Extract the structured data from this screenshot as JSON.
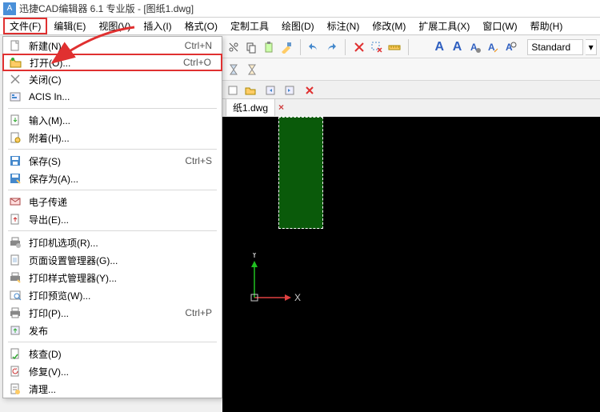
{
  "title": "迅捷CAD编辑器 6.1 专业版  - [图纸1.dwg]",
  "menubar": [
    {
      "label": "文件(F)",
      "active": true
    },
    {
      "label": "编辑(E)"
    },
    {
      "label": "视图(V)"
    },
    {
      "label": "插入(I)"
    },
    {
      "label": "格式(O)"
    },
    {
      "label": "定制工具"
    },
    {
      "label": "绘图(D)"
    },
    {
      "label": "标注(N)"
    },
    {
      "label": "修改(M)"
    },
    {
      "label": "扩展工具(X)"
    },
    {
      "label": "窗口(W)"
    },
    {
      "label": "帮助(H)"
    }
  ],
  "dropdown": [
    {
      "icon": "new",
      "label": "新建(N)...",
      "shortcut": "Ctrl+N"
    },
    {
      "icon": "open",
      "label": "打开(O)...",
      "shortcut": "Ctrl+O",
      "hl": true
    },
    {
      "icon": "close",
      "label": "关闭(C)"
    },
    {
      "icon": "acis",
      "label": "ACIS In..."
    },
    {
      "div": true
    },
    {
      "icon": "import",
      "label": "输入(M)..."
    },
    {
      "icon": "attach",
      "label": "附着(H)..."
    },
    {
      "div": true
    },
    {
      "icon": "save",
      "label": "保存(S)",
      "shortcut": "Ctrl+S"
    },
    {
      "icon": "saveas",
      "label": "保存为(A)..."
    },
    {
      "div": true
    },
    {
      "icon": "etrans",
      "label": "电子传递"
    },
    {
      "icon": "export",
      "label": "导出(E)..."
    },
    {
      "div": true
    },
    {
      "icon": "printopt",
      "label": "打印机选项(R)..."
    },
    {
      "icon": "pagesetup",
      "label": "页面设置管理器(G)..."
    },
    {
      "icon": "plotstyle",
      "label": "打印样式管理器(Y)..."
    },
    {
      "icon": "preview",
      "label": "打印预览(W)..."
    },
    {
      "icon": "print",
      "label": "打印(P)...",
      "shortcut": "Ctrl+P"
    },
    {
      "icon": "publish",
      "label": "发布"
    },
    {
      "div": true
    },
    {
      "icon": "audit",
      "label": "核查(D)"
    },
    {
      "icon": "recover",
      "label": "修复(V)..."
    },
    {
      "icon": "purge",
      "label": "清理..."
    }
  ],
  "style_dropdown": "Standard",
  "doc_tab": "纸1.dwg",
  "ucs": {
    "x_label": "X",
    "y_label": "Y"
  },
  "colors": {
    "highlight_border": "#e03030",
    "canvas_bg": "#000000",
    "green_rect": "#0a5a0a",
    "ucs_x": "#e04040",
    "ucs_y": "#20c020"
  }
}
